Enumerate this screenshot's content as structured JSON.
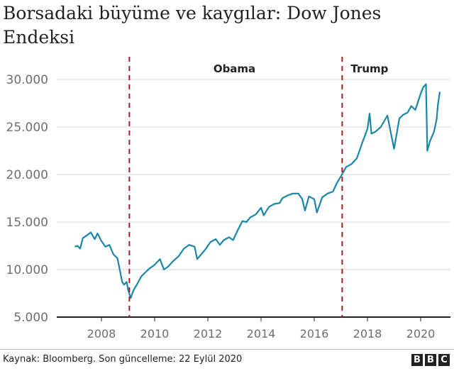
{
  "header": {
    "title": "Borsadaki büyüme ve kaygılar: Dow Jones Endeksi"
  },
  "footer": {
    "source": "Kaynak: Bloomberg. Son güncelleme: 22 Eylül 2020",
    "logo_letters": [
      "B",
      "B",
      "C"
    ]
  },
  "colors": {
    "line": "#1a87a8",
    "marker": "#b3171e",
    "grid": "#d9d9d9",
    "axis": "#222222"
  },
  "chart_data": {
    "type": "line",
    "title": "Borsadaki büyüme ve kaygılar: Dow Jones Endeksi",
    "xlabel": "",
    "ylabel": "",
    "ylim": [
      5000,
      30000
    ],
    "xlim": [
      2006.5,
      2021.3
    ],
    "y_ticks": [
      "30.000",
      "25.000",
      "20.000",
      "15.000",
      "10.000",
      "5.000"
    ],
    "y_tick_values": [
      30000,
      25000,
      20000,
      15000,
      10000,
      5000
    ],
    "x_ticks": [
      "2008",
      "2010",
      "2012",
      "2014",
      "2016",
      "2018",
      "2020"
    ],
    "x_tick_values": [
      2008,
      2010,
      2012,
      2014,
      2016,
      2018,
      2020
    ],
    "grid": true,
    "annotations": [
      {
        "label": "Obama",
        "x": 2009.05,
        "type": "vertical-dashed"
      },
      {
        "label": "Trump",
        "x": 2017.05,
        "type": "vertical-dashed"
      }
    ],
    "series": [
      {
        "name": "Dow Jones",
        "x": [
          2007.0,
          2007.1,
          2007.2,
          2007.3,
          2007.45,
          2007.6,
          2007.75,
          2007.85,
          2008.0,
          2008.15,
          2008.3,
          2008.45,
          2008.6,
          2008.7,
          2008.78,
          2008.85,
          2008.95,
          2009.0,
          2009.1,
          2009.2,
          2009.35,
          2009.5,
          2009.65,
          2009.8,
          2010.0,
          2010.2,
          2010.35,
          2010.5,
          2010.7,
          2010.9,
          2011.1,
          2011.3,
          2011.5,
          2011.6,
          2011.75,
          2011.9,
          2012.1,
          2012.3,
          2012.45,
          2012.6,
          2012.8,
          2012.95,
          2013.1,
          2013.3,
          2013.45,
          2013.6,
          2013.8,
          2014.0,
          2014.1,
          2014.3,
          2014.5,
          2014.7,
          2014.8,
          2015.0,
          2015.2,
          2015.4,
          2015.55,
          2015.65,
          2015.8,
          2016.0,
          2016.1,
          2016.3,
          2016.5,
          2016.7,
          2016.85,
          2017.0,
          2017.2,
          2017.4,
          2017.6,
          2017.8,
          2018.0,
          2018.08,
          2018.15,
          2018.3,
          2018.5,
          2018.75,
          2018.95,
          2019.0,
          2019.2,
          2019.35,
          2019.5,
          2019.65,
          2019.8,
          2020.0,
          2020.1,
          2020.2,
          2020.25,
          2020.35,
          2020.5,
          2020.6,
          2020.65,
          2020.72
        ],
        "values": [
          12400,
          12500,
          12200,
          13300,
          13600,
          13900,
          13200,
          13800,
          13000,
          12400,
          12600,
          11600,
          11200,
          9800,
          8700,
          8400,
          8700,
          7900,
          7000,
          7800,
          8500,
          9300,
          9700,
          10100,
          10500,
          11100,
          10000,
          10300,
          10900,
          11400,
          12200,
          12600,
          12400,
          11100,
          11600,
          12100,
          12900,
          13200,
          12600,
          13100,
          13400,
          13100,
          14000,
          15100,
          15000,
          15500,
          15800,
          16500,
          15700,
          16600,
          16900,
          17000,
          17500,
          17800,
          18000,
          18000,
          17400,
          16200,
          17700,
          17400,
          16000,
          17600,
          18000,
          18200,
          19100,
          19800,
          20800,
          21100,
          21700,
          23300,
          24800,
          26400,
          24300,
          24500,
          25000,
          26200,
          23400,
          22700,
          25900,
          26300,
          26500,
          27200,
          26800,
          28500,
          29200,
          29500,
          22500,
          23500,
          24500,
          25800,
          27400,
          28700
        ]
      }
    ]
  }
}
